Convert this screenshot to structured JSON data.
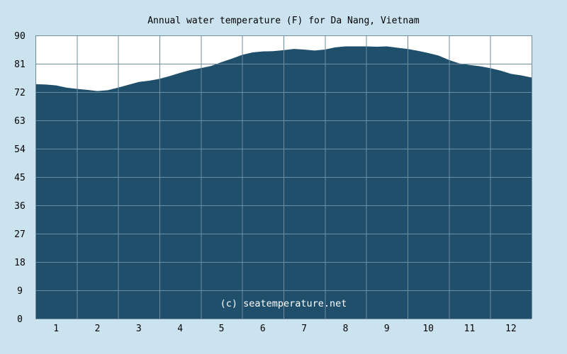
{
  "chart_data": {
    "type": "area",
    "title": "Annual water temperature (F) for Da Nang, Vietnam",
    "xlabel": "",
    "ylabel": "",
    "watermark": "(c) seatemperature.net",
    "xlim": [
      0.5,
      12.5
    ],
    "ylim": [
      0,
      90
    ],
    "y_ticks": [
      0,
      9,
      18,
      27,
      36,
      45,
      54,
      63,
      72,
      81,
      90
    ],
    "categories": [
      "1",
      "2",
      "3",
      "4",
      "5",
      "6",
      "7",
      "8",
      "9",
      "10",
      "11",
      "12"
    ],
    "grid": true,
    "legend": "none",
    "colors": {
      "background": "#cbe2ef",
      "area": "#1f4f6b",
      "plot_background": "#ffffff",
      "grid": "#6e8ea0"
    },
    "series": [
      {
        "x": [
          0.5,
          0.75,
          1.0,
          1.25,
          1.5,
          1.75,
          2.0,
          2.25,
          2.5,
          2.75,
          3.0,
          3.25,
          3.5,
          3.75,
          4.0,
          4.25,
          4.5,
          4.75,
          5.0,
          5.25,
          5.5,
          5.75,
          6.0,
          6.25,
          6.5,
          6.75,
          7.0,
          7.25,
          7.5,
          7.75,
          8.0,
          8.25,
          8.5,
          8.75,
          9.0,
          9.25,
          9.5,
          9.75,
          10.0,
          10.25,
          10.5,
          10.75,
          11.0,
          11.25,
          11.5,
          11.75,
          12.0,
          12.25,
          12.5
        ],
        "values": [
          74.5,
          74.4,
          74.1,
          73.4,
          73.0,
          72.7,
          72.3,
          72.6,
          73.4,
          74.3,
          75.2,
          75.6,
          76.2,
          77.1,
          78.1,
          79.0,
          79.6,
          80.3,
          81.5,
          82.6,
          83.8,
          84.6,
          84.9,
          85.0,
          85.3,
          85.7,
          85.5,
          85.2,
          85.5,
          86.2,
          86.5,
          86.5,
          86.5,
          86.4,
          86.5,
          86.1,
          85.7,
          85.1,
          84.4,
          83.6,
          82.2,
          81.1,
          80.6,
          80.2,
          79.6,
          78.8,
          77.8,
          77.3,
          76.6
        ]
      }
    ]
  }
}
